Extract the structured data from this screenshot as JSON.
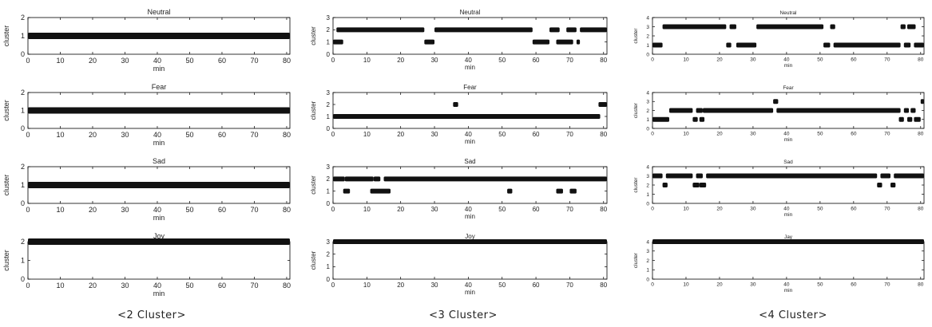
{
  "figure": {
    "columns": [
      {
        "caption": "<2 Cluster>"
      },
      {
        "caption": "<3 Cluster>"
      },
      {
        "caption": "<4 Cluster>"
      }
    ]
  },
  "chart_data": [
    {
      "type": "scatter",
      "title": "Neutral",
      "xlabel": "min",
      "ylabel": "cluster",
      "xlim": [
        0,
        81
      ],
      "ylim": [
        0,
        2
      ],
      "xticks": [
        0,
        10,
        20,
        30,
        40,
        50,
        60,
        70,
        80
      ],
      "yticks": [
        0,
        1,
        2
      ],
      "series": [
        {
          "segments": [
            [
              0,
              81,
              1
            ]
          ]
        }
      ]
    },
    {
      "type": "scatter",
      "title": "Fear",
      "xlabel": "min",
      "ylabel": "cluster",
      "xlim": [
        0,
        81
      ],
      "ylim": [
        0,
        2
      ],
      "xticks": [
        0,
        10,
        20,
        30,
        40,
        50,
        60,
        70,
        80
      ],
      "yticks": [
        0,
        1,
        2
      ],
      "series": [
        {
          "segments": [
            [
              0,
              81,
              1
            ]
          ]
        }
      ]
    },
    {
      "type": "scatter",
      "title": "Sad",
      "xlabel": "min",
      "ylabel": "cluster",
      "xlim": [
        0,
        81
      ],
      "ylim": [
        0,
        2
      ],
      "xticks": [
        0,
        10,
        20,
        30,
        40,
        50,
        60,
        70,
        80
      ],
      "yticks": [
        0,
        1,
        2
      ],
      "series": [
        {
          "segments": [
            [
              0,
              81,
              1
            ]
          ]
        }
      ]
    },
    {
      "type": "scatter",
      "title": "Joy",
      "xlabel": "min",
      "ylabel": "cluster",
      "xlim": [
        0,
        81
      ],
      "ylim": [
        0,
        2
      ],
      "xticks": [
        0,
        10,
        20,
        30,
        40,
        50,
        60,
        70,
        80
      ],
      "yticks": [
        0,
        1,
        2
      ],
      "series": [
        {
          "segments": [
            [
              0,
              81,
              2
            ]
          ]
        }
      ]
    },
    {
      "type": "scatter",
      "title": "Neutral",
      "xlabel": "min",
      "ylabel": "cluster",
      "xlim": [
        0,
        81
      ],
      "ylim": [
        0,
        3
      ],
      "xticks": [
        0,
        10,
        20,
        30,
        40,
        50,
        60,
        70,
        80
      ],
      "yticks": [
        0,
        1,
        2,
        3
      ],
      "series": [
        {
          "segments": [
            [
              0,
              3,
              1
            ],
            [
              1,
              27,
              2
            ],
            [
              27,
              30,
              1
            ],
            [
              30,
              59,
              2
            ],
            [
              59,
              64,
              1
            ],
            [
              64,
              67,
              2
            ],
            [
              66,
              71,
              1
            ],
            [
              69,
              72,
              2
            ],
            [
              72,
              73,
              1
            ],
            [
              73,
              81,
              2
            ]
          ]
        }
      ]
    },
    {
      "type": "scatter",
      "title": "Fear",
      "xlabel": "min",
      "ylabel": "cluster",
      "xlim": [
        0,
        81
      ],
      "ylim": [
        0,
        3
      ],
      "xticks": [
        0,
        10,
        20,
        30,
        40,
        50,
        60,
        70,
        80
      ],
      "yticks": [
        0,
        1,
        2,
        3
      ],
      "series": [
        {
          "segments": [
            [
              0,
              79,
              1
            ],
            [
              35.5,
              37,
              2
            ],
            [
              78.5,
              81,
              2
            ]
          ]
        }
      ]
    },
    {
      "type": "scatter",
      "title": "Sad",
      "xlabel": "min",
      "ylabel": "cluster",
      "xlim": [
        0,
        81
      ],
      "ylim": [
        0,
        3
      ],
      "xticks": [
        0,
        10,
        20,
        30,
        40,
        50,
        60,
        70,
        80
      ],
      "yticks": [
        0,
        1,
        2,
        3
      ],
      "series": [
        {
          "segments": [
            [
              0,
              3.5,
              2
            ],
            [
              3,
              5,
              1
            ],
            [
              3.5,
              12,
              2
            ],
            [
              11,
              17,
              1
            ],
            [
              12,
              14,
              2
            ],
            [
              15,
              81,
              2
            ],
            [
              51.5,
              53,
              1
            ],
            [
              66,
              68,
              1
            ],
            [
              70,
              72,
              1
            ]
          ]
        }
      ]
    },
    {
      "type": "scatter",
      "title": "Joy",
      "xlabel": "min",
      "ylabel": "cluster",
      "xlim": [
        0,
        81
      ],
      "ylim": [
        0,
        3
      ],
      "xticks": [
        0,
        10,
        20,
        30,
        40,
        50,
        60,
        70,
        80
      ],
      "yticks": [
        0,
        1,
        2,
        3
      ],
      "series": [
        {
          "segments": [
            [
              0,
              81,
              3
            ]
          ]
        }
      ]
    },
    {
      "type": "scatter",
      "title": "Neutral",
      "xlabel": "min",
      "ylabel": "cluster",
      "xlim": [
        0,
        81
      ],
      "ylim": [
        0,
        4
      ],
      "xticks": [
        0,
        10,
        20,
        30,
        40,
        50,
        60,
        70,
        80
      ],
      "yticks": [
        0,
        1,
        2,
        3,
        4
      ],
      "series": [
        {
          "segments": [
            [
              0,
              3,
              1
            ],
            [
              3,
              22,
              3
            ],
            [
              22,
              23.5,
              1
            ],
            [
              23,
              25,
              3
            ],
            [
              25,
              31,
              1
            ],
            [
              31,
              51,
              3
            ],
            [
              51,
              53,
              1
            ],
            [
              53,
              54.5,
              3
            ],
            [
              54,
              74,
              1
            ],
            [
              74,
              75.5,
              3
            ],
            [
              75,
              77,
              1
            ],
            [
              76,
              78.5,
              3
            ],
            [
              78,
              81,
              1
            ]
          ]
        }
      ]
    },
    {
      "type": "scatter",
      "title": "Fear",
      "xlabel": "min",
      "ylabel": "cluster",
      "xlim": [
        0,
        81
      ],
      "ylim": [
        0,
        4
      ],
      "xticks": [
        0,
        10,
        20,
        30,
        40,
        50,
        60,
        70,
        80
      ],
      "yticks": [
        0,
        1,
        2,
        3,
        4
      ],
      "series": [
        {
          "segments": [
            [
              0,
              5,
              1
            ],
            [
              5,
              12,
              2
            ],
            [
              12,
              13.5,
              1
            ],
            [
              13,
              15,
              2
            ],
            [
              14,
              15.5,
              1
            ],
            [
              15,
              36,
              2
            ],
            [
              36,
              37.5,
              3
            ],
            [
              37,
              74,
              2
            ],
            [
              73.5,
              75,
              1
            ],
            [
              75,
              76.5,
              2
            ],
            [
              76,
              77.5,
              1
            ],
            [
              77,
              78.5,
              2
            ],
            [
              78,
              80,
              1
            ],
            [
              80,
              81,
              3
            ]
          ]
        }
      ]
    },
    {
      "type": "scatter",
      "title": "Sad",
      "xlabel": "min",
      "ylabel": "cluster",
      "xlim": [
        0,
        81
      ],
      "ylim": [
        0,
        4
      ],
      "xticks": [
        0,
        10,
        20,
        30,
        40,
        50,
        60,
        70,
        80
      ],
      "yticks": [
        0,
        1,
        2,
        3,
        4
      ],
      "series": [
        {
          "segments": [
            [
              0,
              3,
              3
            ],
            [
              3,
              4.5,
              2
            ],
            [
              4,
              12,
              3
            ],
            [
              12,
              14,
              2
            ],
            [
              13,
              15,
              3
            ],
            [
              14,
              16,
              2
            ],
            [
              16,
              67,
              3
            ],
            [
              67,
              68.5,
              2
            ],
            [
              68,
              71,
              3
            ],
            [
              71,
              72.5,
              2
            ],
            [
              72,
              81,
              3
            ]
          ]
        }
      ]
    },
    {
      "type": "scatter",
      "title": "Jay",
      "xlabel": "min",
      "ylabel": "cluster",
      "xlim": [
        0,
        81
      ],
      "ylim": [
        0,
        4
      ],
      "xticks": [
        0,
        10,
        20,
        30,
        40,
        50,
        60,
        70,
        80
      ],
      "yticks": [
        0,
        1,
        2,
        3,
        4
      ],
      "series": [
        {
          "segments": [
            [
              0,
              81,
              4
            ]
          ]
        }
      ]
    }
  ]
}
